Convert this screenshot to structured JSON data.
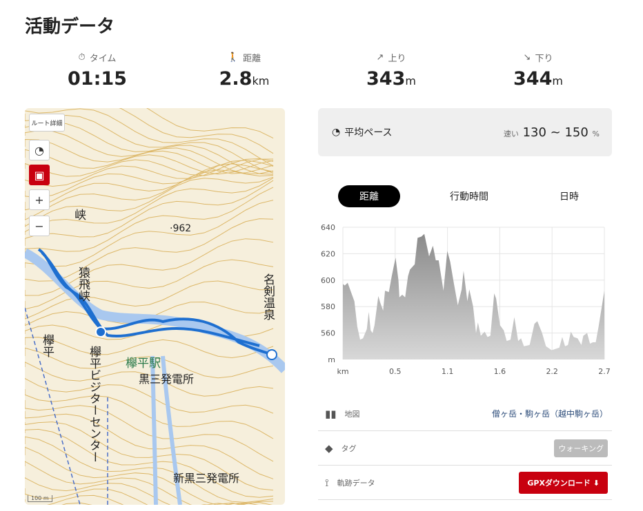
{
  "title": "活動データ",
  "stats": [
    {
      "label": "タイム",
      "icon": "stopwatch-icon",
      "value": "01:15",
      "unit": ""
    },
    {
      "label": "距離",
      "icon": "walker-icon",
      "value": "2.8",
      "unit": "km"
    },
    {
      "label": "上り",
      "icon": "arrow-up-right-icon",
      "value": "343",
      "unit": "m"
    },
    {
      "label": "下り",
      "icon": "arrow-down-right-icon",
      "value": "344",
      "unit": "m"
    }
  ],
  "map": {
    "route_detail": "ルート詳細",
    "zoom_in": "+",
    "zoom_out": "−",
    "scale": "100 m",
    "labels": {
      "peak": "·962",
      "gorge": "猿飛峡",
      "onsen": "名剣温泉",
      "station": "欅平駅",
      "plant3": "黒三発電所",
      "visitor": "欅平ビジターセンター",
      "newplant": "新黒三発電所",
      "keyaki": "欅平",
      "gorge_top": "峡"
    }
  },
  "pace": {
    "label": "平均ペース",
    "speed_label": "速い",
    "range": "130 ~ 150",
    "unit": "%"
  },
  "tabs": [
    "距離",
    "行動時間",
    "日時"
  ],
  "chart_data": {
    "type": "area",
    "xlabel": "km",
    "ylabel": "m",
    "xlim": [
      0,
      2.73
    ],
    "ylim": [
      540,
      640
    ],
    "yticks": [
      640,
      620,
      600,
      580,
      560
    ],
    "xtick_labels": [
      "km",
      "0.5",
      "1.1",
      "1.6",
      "2.2",
      "2.7"
    ],
    "grid": true,
    "fill": "#999999",
    "x": [
      0,
      0.02,
      0.05,
      0.08,
      0.12,
      0.15,
      0.18,
      0.21,
      0.25,
      0.27,
      0.29,
      0.31,
      0.33,
      0.37,
      0.39,
      0.42,
      0.44,
      0.48,
      0.51,
      0.55,
      0.58,
      0.59,
      0.62,
      0.65,
      0.68,
      0.7,
      0.75,
      0.78,
      0.82,
      0.85,
      0.9,
      0.94,
      0.97,
      1.0,
      1.05,
      1.09,
      1.12,
      1.16,
      1.2,
      1.24,
      1.26,
      1.3,
      1.32,
      1.36,
      1.39,
      1.41,
      1.44,
      1.48,
      1.51,
      1.54,
      1.58,
      1.6,
      1.64,
      1.68,
      1.71,
      1.75,
      1.79,
      1.83,
      1.86,
      1.89,
      1.95,
      2.0,
      2.03,
      2.08,
      2.12,
      2.18,
      2.22,
      2.26,
      2.29,
      2.32,
      2.35,
      2.38,
      2.41,
      2.45,
      2.49,
      2.51,
      2.55,
      2.58,
      2.61,
      2.64,
      2.67,
      2.73
    ],
    "y": [
      597,
      596,
      598,
      592,
      584,
      565,
      555,
      556,
      563,
      576,
      562,
      560,
      566,
      588,
      583,
      577,
      592,
      591,
      603,
      617,
      600,
      587,
      589,
      587,
      603,
      608,
      612,
      632,
      633,
      635,
      618,
      626,
      615,
      615,
      592,
      622,
      614,
      597,
      581,
      593,
      607,
      584,
      593,
      580,
      560,
      568,
      558,
      561,
      557,
      558,
      590,
      586,
      566,
      562,
      554,
      555,
      572,
      554,
      556,
      550,
      551,
      567,
      569,
      560,
      550,
      547,
      548,
      549,
      557,
      550,
      551,
      561,
      557,
      556,
      551,
      558,
      560,
      552,
      553,
      553,
      565,
      592
    ]
  },
  "info": [
    {
      "icon": "map-icon",
      "label": "地図",
      "value": "僧ヶ岳・駒ヶ岳（越中駒ヶ岳）"
    },
    {
      "icon": "tag-icon",
      "label": "タグ",
      "value": "ウォーキング"
    },
    {
      "icon": "route-icon",
      "label": "軌跡データ",
      "value": "GPXダウンロード"
    }
  ],
  "colors": {
    "accent": "#c8000f",
    "route": "#1e6fd0",
    "map_bg": "#f6efdc",
    "contour": "#d6a94a"
  }
}
